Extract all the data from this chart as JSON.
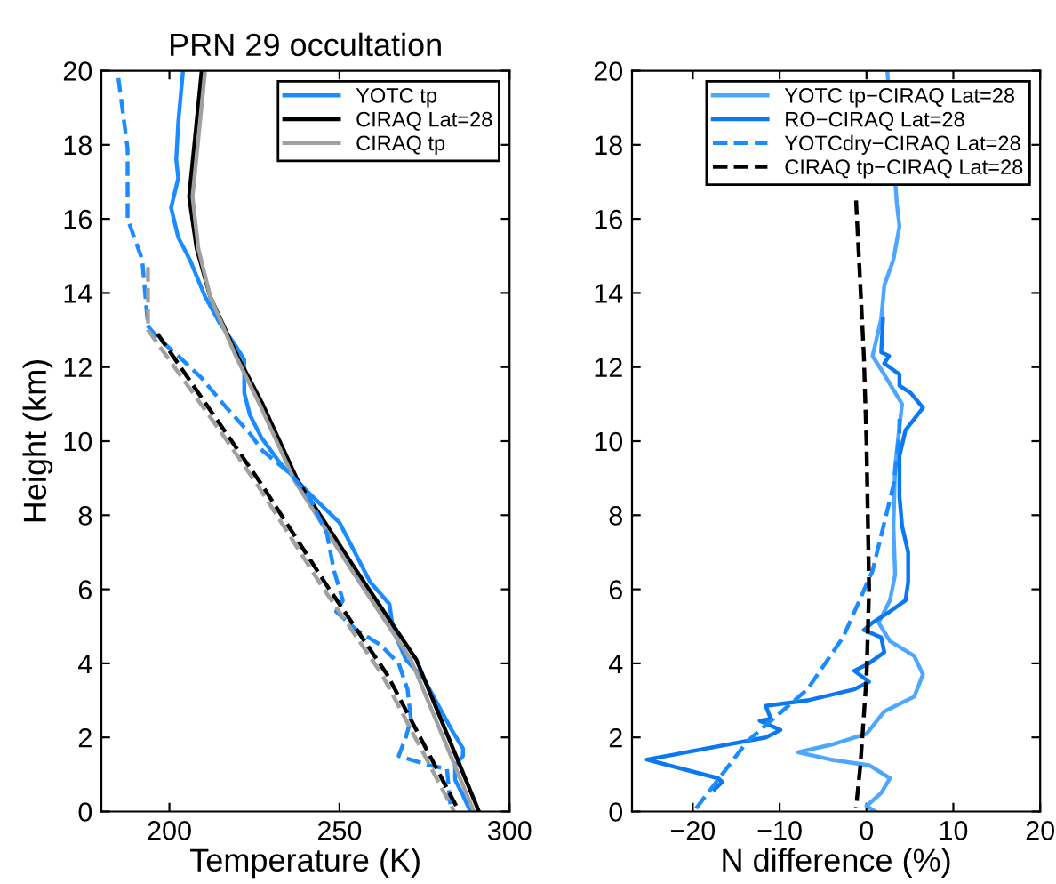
{
  "chart_data": [
    {
      "type": "line",
      "title": "PRN 29 occultation",
      "xlabel": "Temperature (K)",
      "ylabel": "Height (km)",
      "xlim": [
        180,
        300
      ],
      "xticks": [
        200,
        250,
        300
      ],
      "ylim": [
        0,
        20
      ],
      "yticks": [
        0,
        2,
        4,
        6,
        8,
        10,
        12,
        14,
        16,
        18,
        20
      ],
      "grid": false,
      "legend": "top right",
      "series": [
        {
          "name": "YOTC tp",
          "color": "#1a8cff",
          "line_style": "solid",
          "x": [
            204,
            202.6,
            202,
            202.6,
            200.5,
            202.6,
            206,
            210.5,
            214.7,
            219.3,
            222,
            222,
            223.7,
            227,
            232.6,
            241,
            250,
            259,
            264.7,
            265.8,
            269.5,
            274.7,
            283,
            286.3,
            286.3,
            284,
            284,
            286,
            288.5
          ],
          "values": [
            20,
            18.6,
            17.6,
            17.1,
            16.3,
            15.5,
            14.9,
            13.9,
            13.2,
            12.6,
            12.2,
            11.3,
            10.7,
            10.1,
            9.4,
            8.6,
            7.8,
            6.2,
            5.6,
            4.9,
            4.1,
            3.6,
            2.2,
            1.7,
            1.5,
            1.25,
            0.85,
            0.5,
            0
          ]
        },
        {
          "name": "CIRAQ Lat=28",
          "color": "#000000",
          "line_style": "solid",
          "x": [
            209.5,
            205.8,
            208,
            212,
            220,
            227.4,
            237.9,
            255,
            272.6,
            291
          ],
          "values": [
            20,
            16.6,
            15.2,
            13.9,
            12.3,
            11,
            8.9,
            6.5,
            4.1,
            0
          ]
        },
        {
          "name": "CIRAQ tp",
          "color": "#a0a0a0",
          "line_style": "solid",
          "x": [
            210.5,
            206.8,
            208.5,
            212,
            219.5,
            226.5,
            237,
            253.7,
            271,
            289.5
          ],
          "values": [
            20,
            16.6,
            15.2,
            13.9,
            12.3,
            11,
            8.9,
            6.5,
            4.1,
            0
          ]
        },
        {
          "color": "#1a8cff",
          "line_style": "dashed",
          "x": [
            185,
            187.7,
            187.7,
            192,
            193.7,
            196.5,
            202.6,
            209.5,
            216.8,
            223.7,
            227.3,
            235.8,
            241,
            246.3,
            248.4,
            251,
            249,
            255,
            262,
            267.4,
            270,
            271,
            269.5,
            267.4,
            276.3,
            281.6,
            282.6
          ],
          "values": [
            19.8,
            17.9,
            16,
            14.9,
            13.1,
            12.8,
            12.3,
            11.7,
            10.9,
            10.2,
            9.75,
            9.1,
            8.5,
            7.5,
            6.5,
            5.7,
            5.4,
            4.9,
            4.5,
            4,
            3.3,
            2.5,
            2,
            1.5,
            1.25,
            1.15,
            0.2
          ]
        },
        {
          "color": "#000000",
          "line_style": "dashed",
          "x": [
            196.5,
            216.8,
            227.3,
            246.3,
            264,
            285.2
          ],
          "values": [
            12.9,
            10.2,
            8.8,
            6.1,
            3.7,
            0
          ]
        },
        {
          "color": "#a0a0a0",
          "line_style": "dashed",
          "x": [
            193.7,
            193.7,
            215.5,
            226,
            244.7,
            262.5,
            283.7
          ],
          "values": [
            14.7,
            13,
            10.2,
            8.8,
            6.1,
            3.7,
            0
          ]
        }
      ]
    },
    {
      "type": "line",
      "xlabel": "N difference (%)",
      "xlim": [
        -27,
        20
      ],
      "xticks": [
        {
          "value": -20,
          "label": "−20"
        },
        {
          "value": -10,
          "label": "−10"
        },
        0,
        10,
        20
      ],
      "ylim": [
        0,
        20
      ],
      "yticks": [
        0,
        2,
        4,
        6,
        8,
        10,
        12,
        14,
        16,
        18,
        20
      ],
      "grid": false,
      "legend": "top right",
      "series": [
        {
          "name": "YOTC tp−CIRAQ Lat=28",
          "color": "#4da6ff",
          "line_style": "solid",
          "x": [
            2.4,
            3.5,
            3.8,
            3.1,
            2.05,
            1.7,
            0.7,
            2.05,
            4.1,
            3.8,
            3.3,
            3.1,
            3.3,
            2.7,
            1.4,
            2.7,
            5.5,
            6.5,
            5.5,
            2.05,
            0,
            -4.1,
            -7.9,
            -4.1,
            0.3,
            2.7,
            1.7,
            0,
            1
          ],
          "values": [
            20,
            16.4,
            15.8,
            14.9,
            14.2,
            13.3,
            12.3,
            11.8,
            11,
            10.4,
            9.3,
            7.7,
            6.4,
            5.7,
            5.1,
            4.6,
            4.2,
            3.7,
            3.1,
            2.7,
            2.1,
            1.8,
            1.6,
            1.4,
            1.25,
            0.9,
            0.5,
            0.15,
            0
          ]
        },
        {
          "name": "RO−CIRAQ Lat=28",
          "color": "#0a78f0",
          "line_style": "solid",
          "x": [
            1.9,
            1.7,
            2.6,
            2.05,
            3.8,
            3.8,
            5.1,
            6.5,
            5.5,
            4.5,
            3.8,
            3.8,
            4.1,
            4.8,
            4.8,
            4.5,
            2.7,
            0.7,
            -0.3,
            1.7,
            2.05,
            0.3,
            -1.4,
            0.3,
            -1.4,
            -6.8,
            -11.6,
            -11,
            -12.3,
            -9.9,
            -11.6,
            -25.3,
            -17.1,
            -16.6,
            -17.5
          ],
          "values": [
            13.3,
            12.4,
            12.3,
            12.1,
            11.8,
            11.5,
            11.3,
            10.9,
            10.6,
            10.3,
            9.6,
            8.5,
            7.7,
            7,
            6.2,
            5.7,
            5.4,
            5.1,
            4.9,
            4.7,
            4.3,
            4,
            3.8,
            3.5,
            3.3,
            3,
            2.85,
            2.5,
            2.45,
            2.2,
            2,
            1.4,
            0.9,
            0.8,
            0.6
          ]
        },
        {
          "name": "YOTCdry−CIRAQ Lat=28",
          "color": "#1a8cff",
          "line_style": "dashed",
          "x": [
            3.8,
            3.8,
            3.1,
            0.7,
            -2.7,
            -6.8,
            -13.7,
            -19.9
          ],
          "values": [
            10.6,
            10.2,
            8.8,
            6.5,
            4.7,
            3.3,
            1.9,
            0
          ]
        },
        {
          "name": "CIRAQ tp−CIRAQ Lat=28",
          "color": "#000000",
          "line_style": "dashed",
          "x": [
            -1.2,
            -0.3,
            0,
            0.3,
            0,
            -0.7,
            -1.2
          ],
          "values": [
            16.5,
            12.3,
            10,
            6,
            3.6,
            1.25,
            0.1
          ]
        }
      ]
    }
  ]
}
